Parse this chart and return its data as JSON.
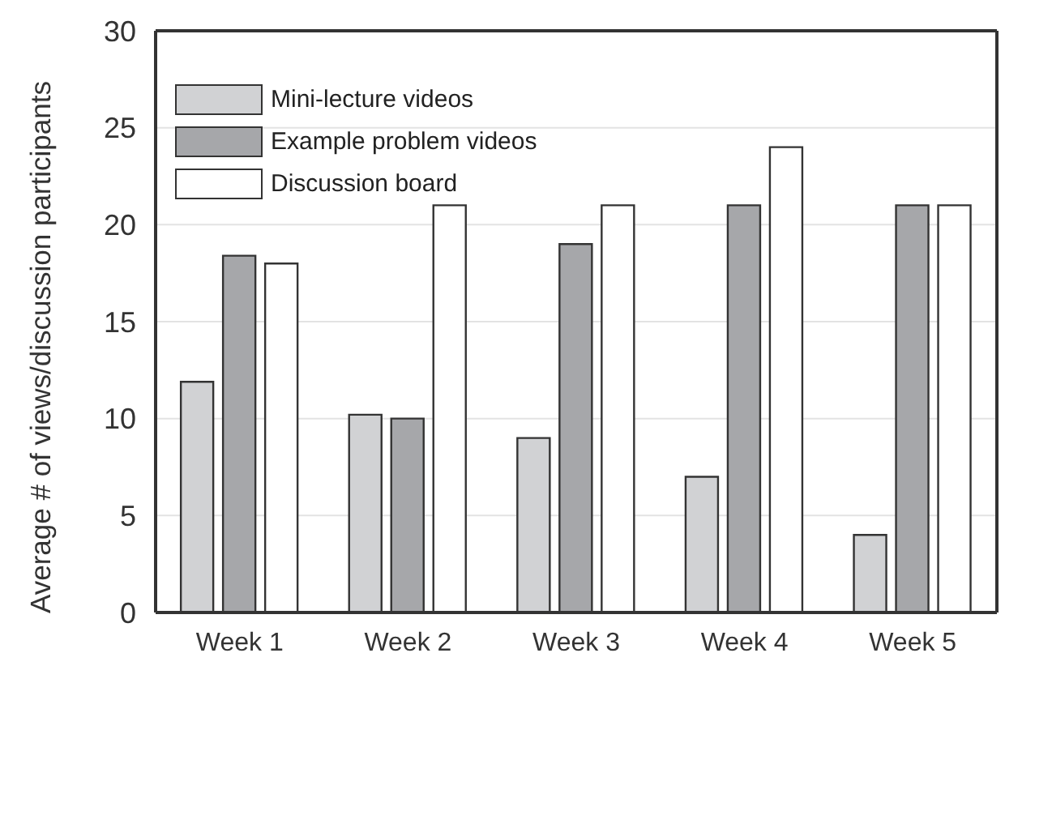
{
  "chart_data": {
    "type": "bar",
    "ylabel": "Average # of views/discussion participants",
    "categories": [
      "Week 1",
      "Week 2",
      "Week 3",
      "Week 4",
      "Week 5"
    ],
    "series": [
      {
        "name": "Mini-lecture videos",
        "color": "#d1d2d4",
        "values": [
          11.9,
          10.2,
          9,
          7,
          4
        ]
      },
      {
        "name": "Example problem videos",
        "color": "#a6a7aa",
        "values": [
          18.4,
          10,
          19,
          21,
          21
        ]
      },
      {
        "name": "Discussion board",
        "color": "#ffffff",
        "values": [
          18,
          21,
          21,
          24,
          21
        ]
      }
    ],
    "ylim": [
      0,
      30
    ],
    "yticks": [
      0,
      5,
      10,
      15,
      20,
      25,
      30
    ],
    "grid": "y",
    "legend": "top left"
  }
}
